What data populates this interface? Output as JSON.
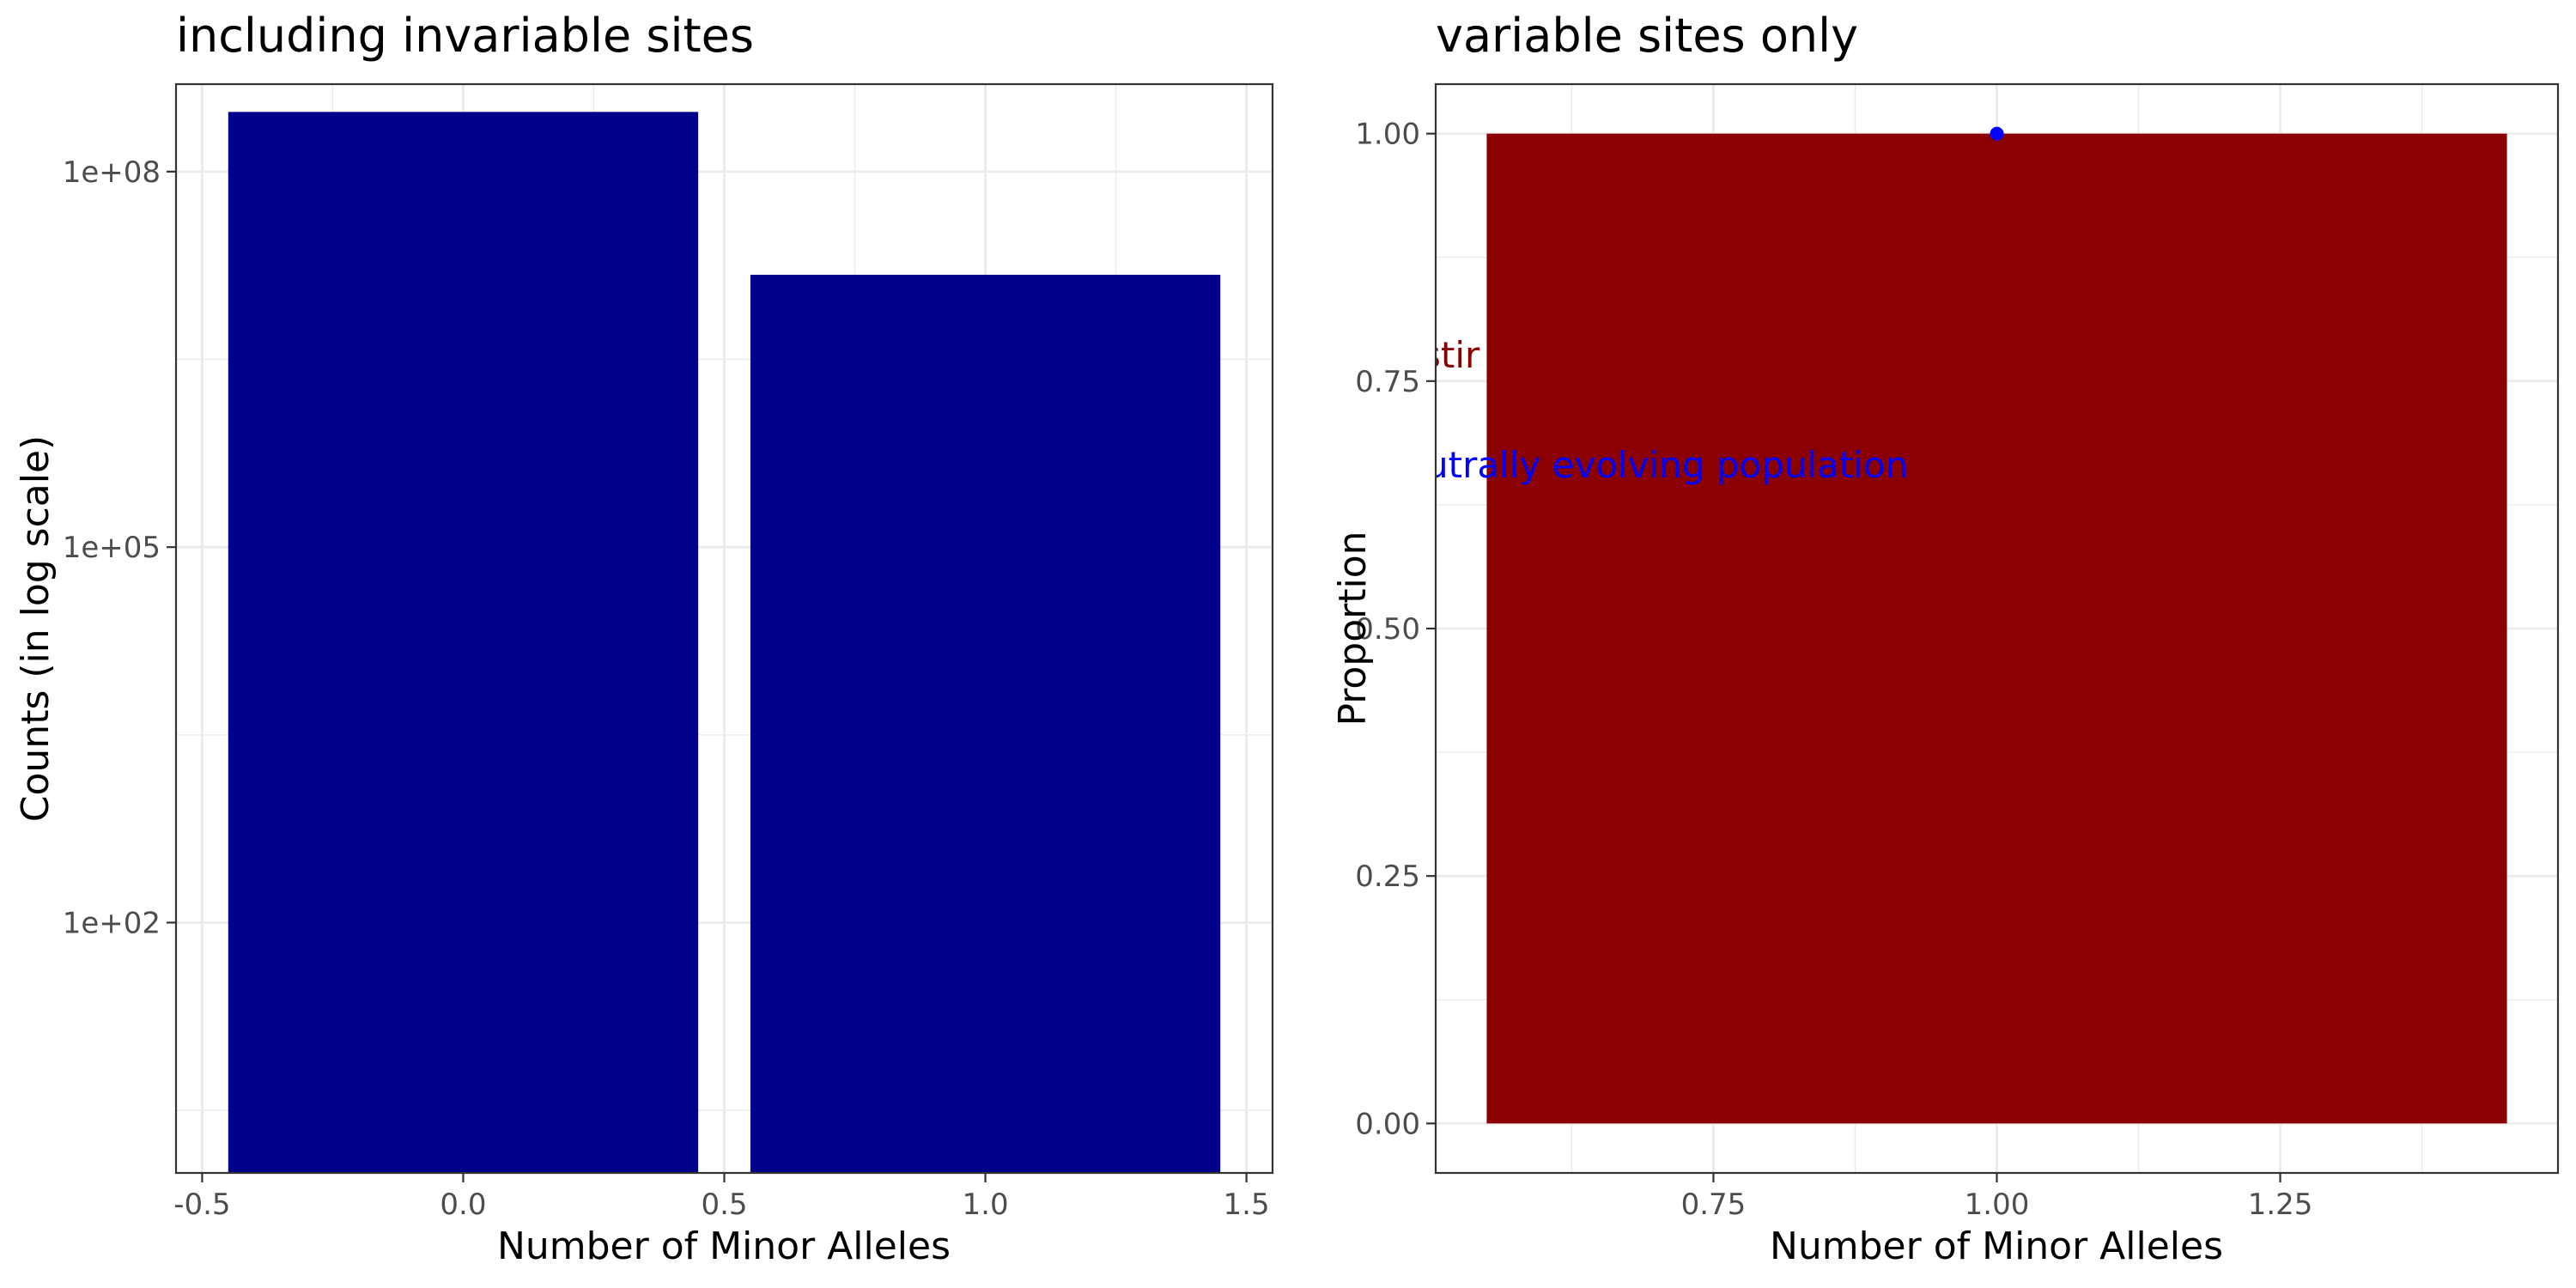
{
  "chart_data": [
    {
      "type": "bar",
      "title": "including invariable sites",
      "xlabel": "Number of Minor Alleles",
      "ylabel": "Counts (in log scale)",
      "y_scale": "log10",
      "x_major_ticks": [
        -0.5,
        0.0,
        0.5,
        1.0,
        1.5
      ],
      "x_tick_labels": [
        "-0.5",
        "0.0",
        "0.5",
        "1.0",
        "1.5"
      ],
      "y_major_ticks": [
        100,
        100000,
        100000000
      ],
      "y_tick_labels": [
        "1e+02",
        "1e+05",
        "1e+08"
      ],
      "xlim": [
        -0.55,
        1.55
      ],
      "ylim": [
        1,
        500000000
      ],
      "grid": true,
      "bar_color": "#00008B",
      "categories": [
        0,
        1
      ],
      "values": [
        300000000,
        15000000
      ]
    },
    {
      "type": "bar",
      "title": "variable sites only",
      "xlabel": "Number of Minor Alleles",
      "ylabel": "Proportion",
      "x_major_ticks": [
        0.75,
        1.0,
        1.25
      ],
      "x_tick_labels": [
        "0.75",
        "1.00",
        "1.25"
      ],
      "y_major_ticks": [
        0,
        0.25,
        0.5,
        0.75,
        1.0
      ],
      "y_tick_labels": [
        "0.00",
        "0.25",
        "0.50",
        "0.75",
        "1.00"
      ],
      "xlim": [
        0.505,
        1.495
      ],
      "ylim": [
        -0.05,
        1.05
      ],
      "grid": true,
      "bar_color": "#8B0000",
      "categories": [
        1
      ],
      "values": [
        1.0
      ],
      "points": [
        {
          "x": 1.0,
          "y": 1.0,
          "color": "#0000FF"
        }
      ],
      "annotations": [
        {
          "text": "stir",
          "color": "#8B0000"
        },
        {
          "text": "utrally evolving population",
          "color": "#0000FF"
        }
      ]
    }
  ]
}
